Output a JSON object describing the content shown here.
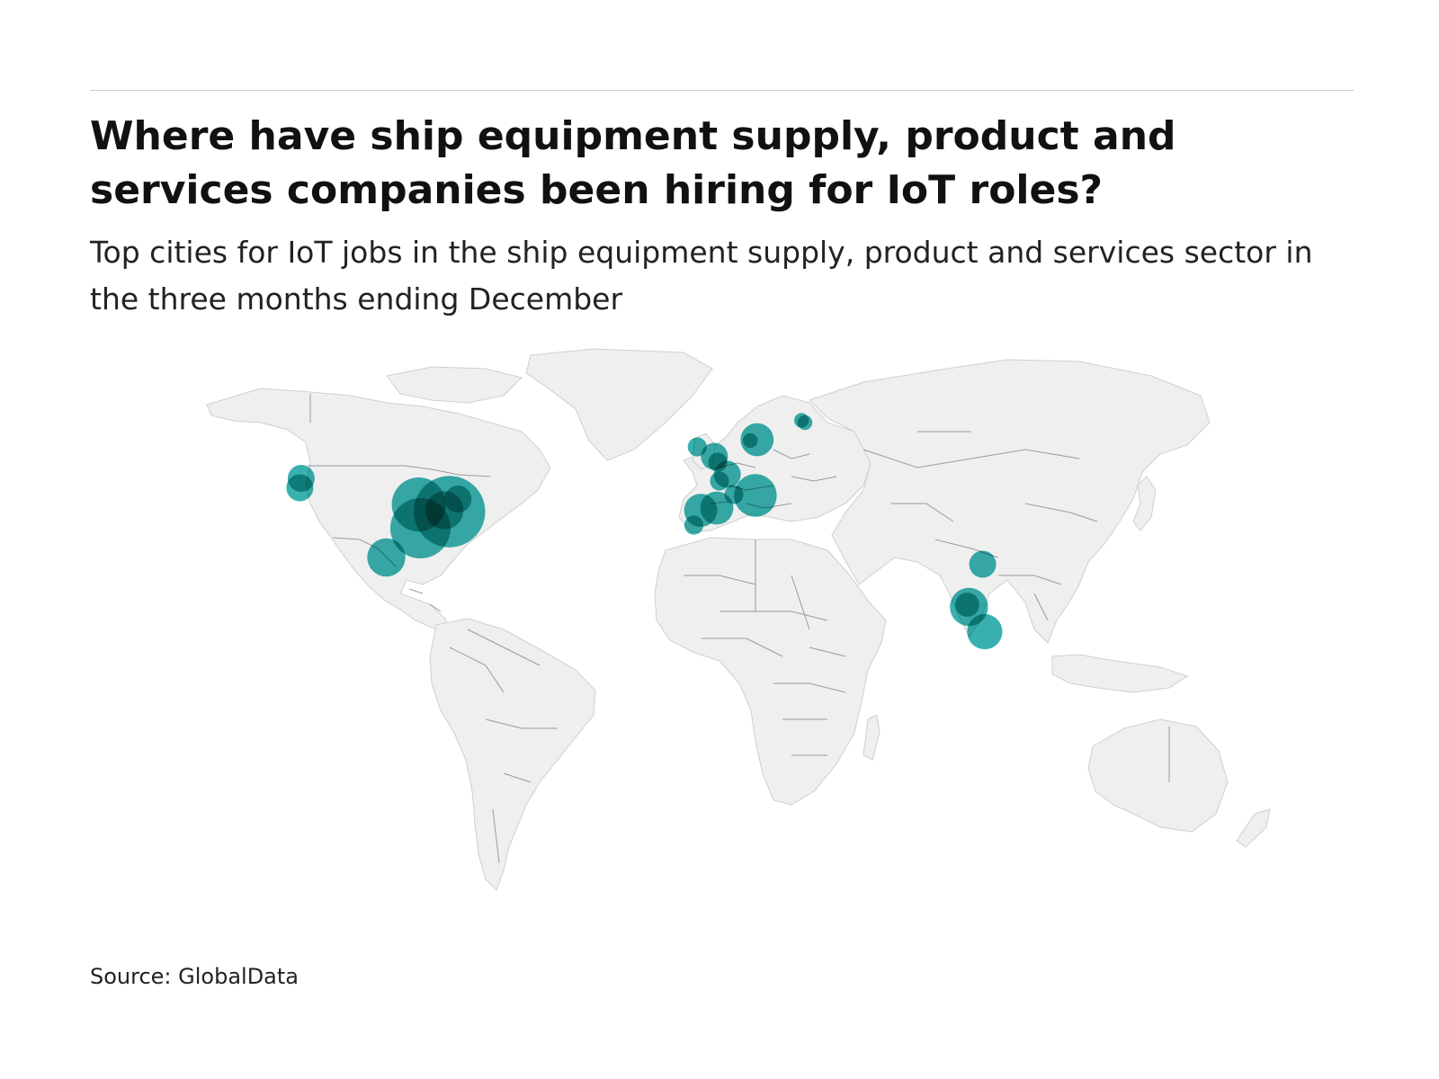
{
  "title": "Where have ship equipment supply, product and services companies been hiring for IoT roles?",
  "subtitle": "Top cities for IoT jobs in the ship equipment supply, product and services sector in the three months ending December",
  "source": "Source: GlobalData",
  "colors": {
    "bubble": "#15a3a0",
    "bubble_overlap": "#0b4a48",
    "land": "#efefef",
    "border": "#9a9a9a",
    "rule": "#cccccc"
  },
  "chart_data": {
    "type": "bubble-map",
    "points": [
      {
        "region": "north-america",
        "lon": -122.4,
        "lat": 47.6,
        "size": 1
      },
      {
        "region": "north-america",
        "lon": -122.8,
        "lat": 45.5,
        "size": 1
      },
      {
        "region": "north-america",
        "lon": -97.5,
        "lat": 30.0,
        "size": 2
      },
      {
        "region": "north-america",
        "lon": -88.0,
        "lat": 41.8,
        "size": 4
      },
      {
        "region": "north-america",
        "lon": -87.5,
        "lat": 36.5,
        "size": 5
      },
      {
        "region": "north-america",
        "lon": -79.0,
        "lat": 40.2,
        "size": 7
      },
      {
        "region": "north-america",
        "lon": -80.5,
        "lat": 40.5,
        "size": 2
      },
      {
        "region": "north-america",
        "lon": -76.5,
        "lat": 43.0,
        "size": 1
      },
      {
        "region": "europe",
        "lon": -6.5,
        "lat": 54.6,
        "size": 0.5
      },
      {
        "region": "europe",
        "lon": -1.5,
        "lat": 52.5,
        "size": 1
      },
      {
        "region": "europe",
        "lon": -0.5,
        "lat": 51.2,
        "size": 0.5
      },
      {
        "region": "europe",
        "lon": 2.3,
        "lat": 48.5,
        "size": 1
      },
      {
        "region": "europe",
        "lon": 0.0,
        "lat": 47.0,
        "size": 0.5
      },
      {
        "region": "europe",
        "lon": -5.5,
        "lat": 40.5,
        "size": 1.5
      },
      {
        "region": "europe",
        "lon": -0.8,
        "lat": 41.0,
        "size": 1.5
      },
      {
        "region": "europe",
        "lon": -7.5,
        "lat": 37.2,
        "size": 0.5
      },
      {
        "region": "europe",
        "lon": 4.2,
        "lat": 44.0,
        "size": 0.5
      },
      {
        "region": "europe",
        "lon": 10.5,
        "lat": 43.8,
        "size": 2.5
      },
      {
        "region": "europe",
        "lon": 11.0,
        "lat": 56.2,
        "size": 1.5
      },
      {
        "region": "europe",
        "lon": 9.0,
        "lat": 56.0,
        "size": 0.3
      },
      {
        "region": "europe",
        "lon": 24.0,
        "lat": 60.5,
        "size": 0.3
      },
      {
        "region": "europe",
        "lon": 25.0,
        "lat": 60.0,
        "size": 0.3
      },
      {
        "region": "asia",
        "lon": 77.0,
        "lat": 28.5,
        "size": 1
      },
      {
        "region": "asia",
        "lon": 73.0,
        "lat": 19.0,
        "size": 2
      },
      {
        "region": "asia",
        "lon": 72.5,
        "lat": 19.5,
        "size": 0.8
      },
      {
        "region": "asia",
        "lon": 77.6,
        "lat": 13.5,
        "size": 1.7
      }
    ]
  }
}
